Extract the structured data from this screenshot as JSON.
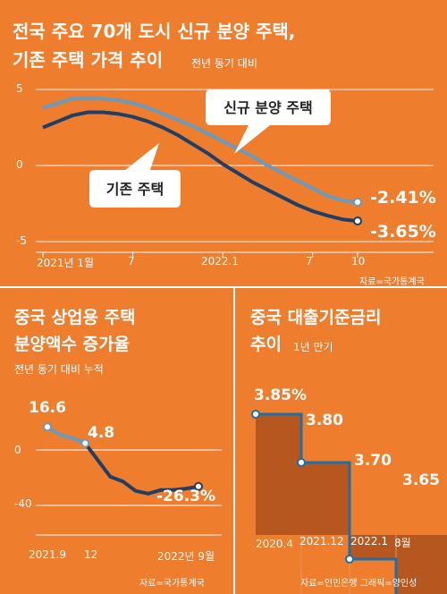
{
  "panel1": {
    "title_line1": "전국 주요 70개 도시 신규 분양 주택,",
    "title_line2": "기존 주택 가격 추이",
    "subtitle": "전년 동기 대비",
    "source": "자료=국가통계국",
    "labels": {
      "new": "신규 분양 주택",
      "existing": "기존 주택"
    },
    "end_labels": {
      "new": "-2.41%",
      "existing": "-3.65%"
    }
  },
  "panel2": {
    "title_line1": "중국 상업용 주택",
    "title_line2": "분양액수 증가율",
    "subtitle": "전년 동기 대비 누적",
    "source": "자료=국가통계국",
    "point_labels": [
      "16.6",
      "4.8",
      "-26.3%"
    ]
  },
  "panel3": {
    "title_line1": "중국 대출기준금리",
    "title_line2": "추이",
    "subtitle": "1년 만기",
    "source": "자료=인민은행  그래픽=양인성",
    "value_labels": [
      "3.85%",
      "3.80",
      "3.70",
      "3.65"
    ]
  },
  "colors": {
    "background": "#ee7d2d",
    "new_line": "#6a9bbd",
    "existing_line": "#1f3f66",
    "area_fill": "#b6571f"
  },
  "chart_data": [
    {
      "type": "line",
      "title": "전국 주요 70개 도시 신규 분양 주택, 기존 주택 가격 추이",
      "subtitle": "전년 동기 대비",
      "x_tick_labels": [
        "2021년 1월",
        "7",
        "2022.1",
        "7",
        "10"
      ],
      "y_tick_labels": [
        "5",
        "0",
        "-5"
      ],
      "ylim": [
        -5,
        5
      ],
      "grid": "horizontal",
      "x": [
        "2021-01",
        "2021-02",
        "2021-03",
        "2021-04",
        "2021-05",
        "2021-06",
        "2021-07",
        "2021-08",
        "2021-09",
        "2021-10",
        "2021-11",
        "2021-12",
        "2022-01",
        "2022-02",
        "2022-03",
        "2022-04",
        "2022-05",
        "2022-06",
        "2022-07",
        "2022-08",
        "2022-09",
        "2022-10"
      ],
      "series": [
        {
          "name": "신규 분양 주택",
          "values": [
            3.8,
            4.1,
            4.4,
            4.4,
            4.4,
            4.3,
            4.1,
            3.8,
            3.4,
            3.0,
            2.6,
            2.1,
            1.6,
            1.1,
            0.6,
            0.0,
            -0.5,
            -1.0,
            -1.5,
            -2.0,
            -2.3,
            -2.41
          ]
        },
        {
          "name": "기존 주택",
          "values": [
            2.5,
            2.9,
            3.3,
            3.5,
            3.5,
            3.4,
            3.2,
            2.9,
            2.5,
            2.0,
            1.4,
            0.8,
            0.1,
            -0.5,
            -1.1,
            -1.6,
            -2.1,
            -2.6,
            -3.0,
            -3.3,
            -3.55,
            -3.65
          ]
        }
      ]
    },
    {
      "type": "line",
      "title": "중국 상업용 주택 분양액수 증가율",
      "subtitle": "전년 동기 대비 누적",
      "x_tick_labels": [
        "2021.9",
        "12",
        "2022년 9월"
      ],
      "y_tick_labels": [
        "0",
        "-40"
      ],
      "ylim": [
        -40,
        25
      ],
      "x": [
        "2021-09",
        "2021-10",
        "2021-11",
        "2021-12",
        "2022-02",
        "2022-03",
        "2022-04",
        "2022-05",
        "2022-06",
        "2022-07",
        "2022-08",
        "2022-09"
      ],
      "series": [
        {
          "name": "",
          "values": [
            16.6,
            11.0,
            8.5,
            4.8,
            -19.3,
            -22.7,
            -29.5,
            -31.5,
            -28.9,
            -28.8,
            -27.9,
            -26.3
          ]
        }
      ]
    },
    {
      "type": "area",
      "title": "중국 대출기준금리 추이",
      "subtitle": "1년 만기",
      "x_tick_labels": [
        "2020.4",
        "2021.12",
        "2022.1",
        "8월"
      ],
      "x": [
        "2020-04",
        "2021-12",
        "2022-01",
        "2022-08"
      ],
      "step": true,
      "series": [
        {
          "name": "",
          "values": [
            3.85,
            3.8,
            3.7,
            3.65
          ]
        }
      ]
    }
  ]
}
